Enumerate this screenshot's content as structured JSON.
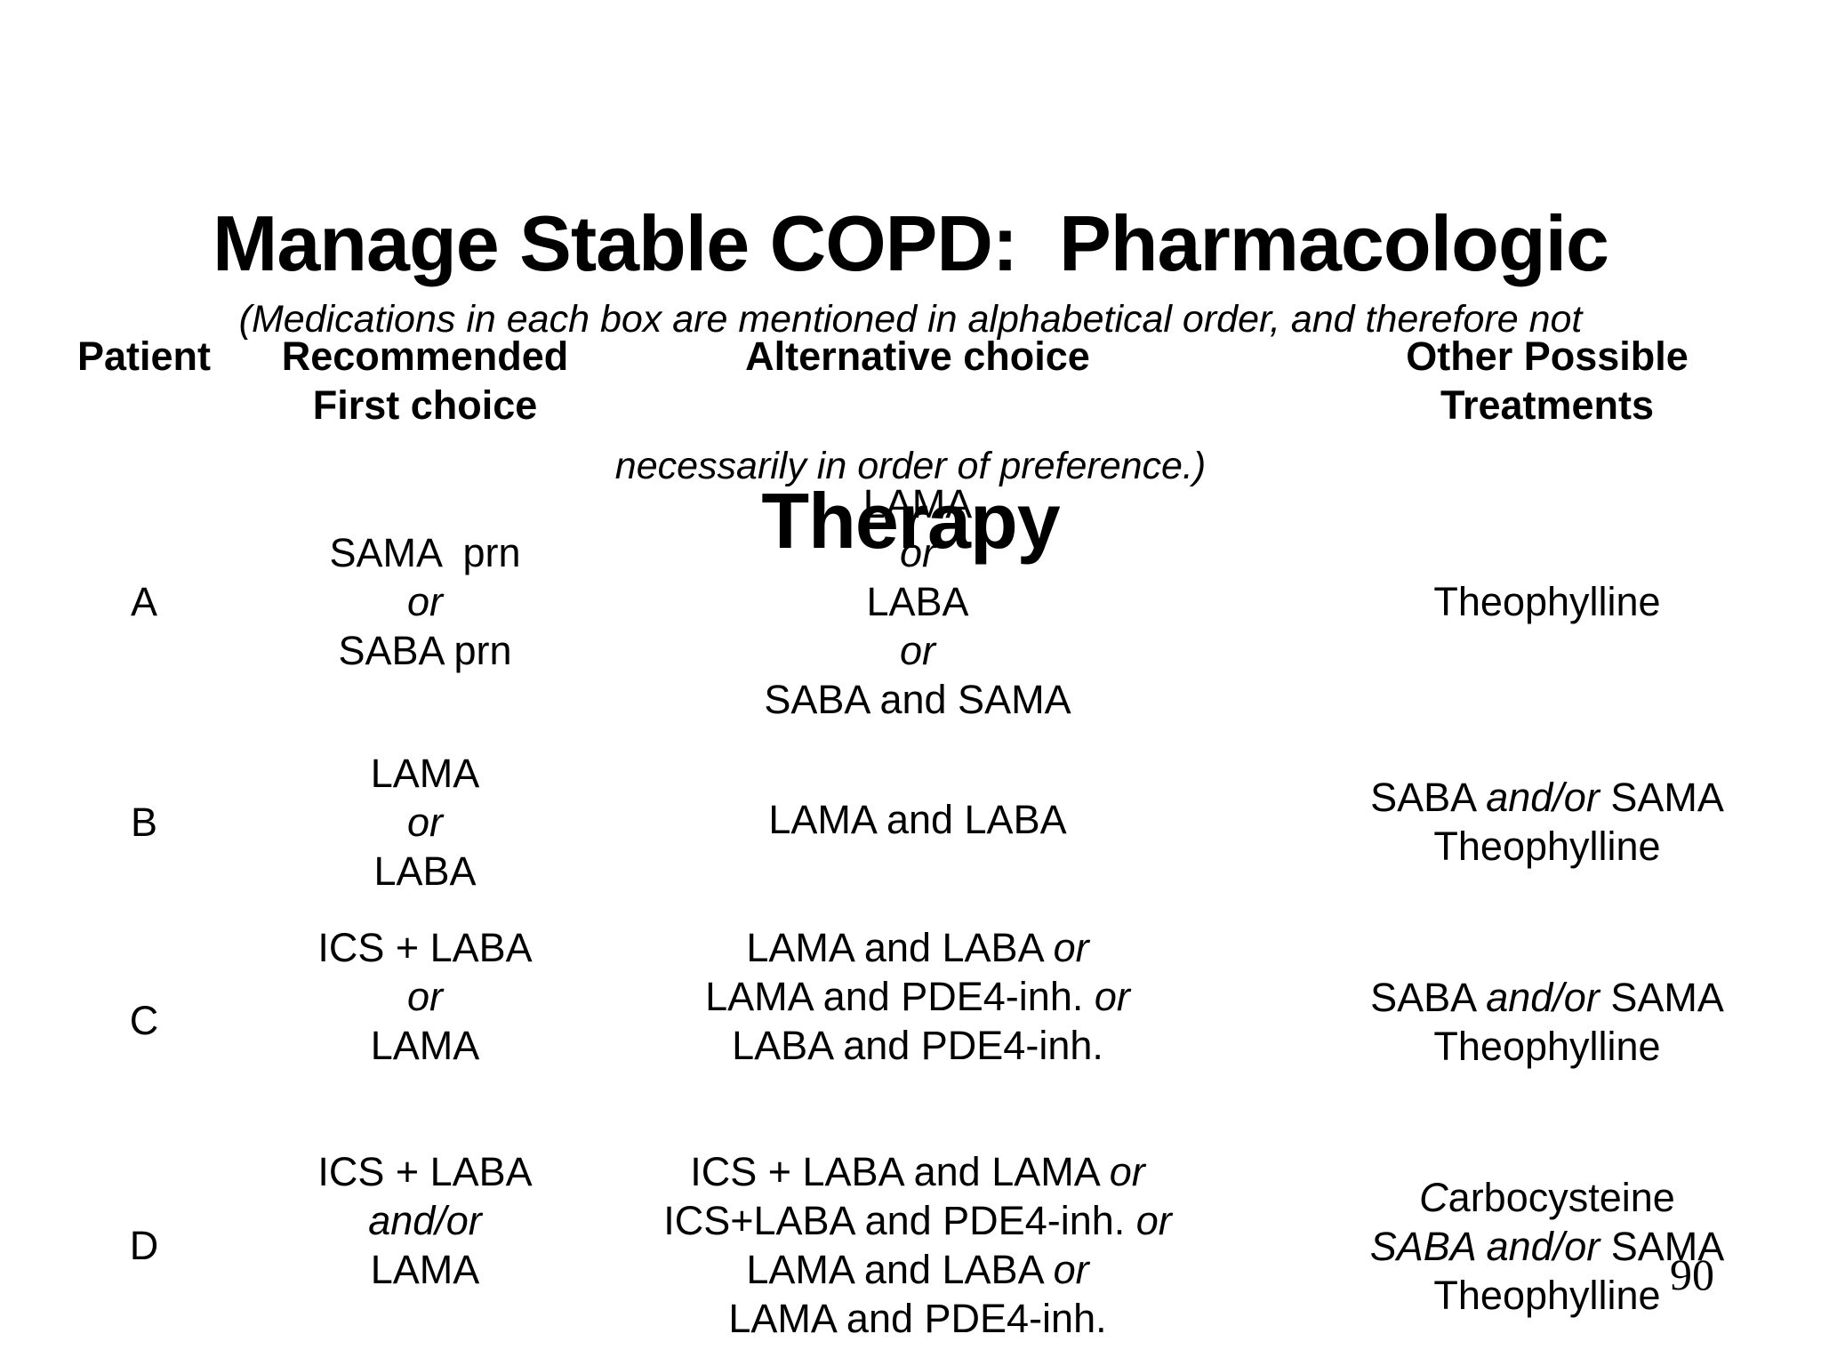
{
  "slide": {
    "title_lines": [
      "Manage Stable COPD:  Pharmacologic",
      "Therapy"
    ],
    "subtitle_lines": [
      "(Medications in each box are mentioned in alphabetical order, and therefore not",
      "necessarily in order of preference.)"
    ],
    "page_number": "90"
  },
  "table": {
    "headers": {
      "patient": [
        "Patient"
      ],
      "first_choice": [
        "Recommended",
        "First choice"
      ],
      "alternative": [
        "Alternative choice"
      ],
      "other": [
        "Other Possible",
        "Treatments"
      ]
    },
    "rows": [
      {
        "patient": "A",
        "first_choice": [
          [
            {
              "t": "SAMA  prn",
              "i": false
            }
          ],
          [
            {
              "t": "or",
              "i": true
            }
          ],
          [
            {
              "t": "SABA prn",
              "i": false
            }
          ]
        ],
        "alternative": [
          [
            {
              "t": "LAMA",
              "i": false
            }
          ],
          [
            {
              "t": "or",
              "i": true
            }
          ],
          [
            {
              "t": "LABA",
              "i": false
            }
          ],
          [
            {
              "t": "or",
              "i": true
            }
          ],
          [
            {
              "t": "SABA and SAMA",
              "i": false
            }
          ]
        ],
        "other": [
          [
            {
              "t": "Theophylline",
              "i": false
            }
          ]
        ]
      },
      {
        "patient": "B",
        "first_choice": [
          [
            {
              "t": "LAMA",
              "i": false
            }
          ],
          [
            {
              "t": "or",
              "i": true
            }
          ],
          [
            {
              "t": "LABA",
              "i": false
            }
          ]
        ],
        "alternative": [
          [
            {
              "t": "LAMA and LABA",
              "i": false
            }
          ]
        ],
        "other": [
          [
            {
              "t": "SABA ",
              "i": false
            },
            {
              "t": "and/or",
              "i": true
            },
            {
              "t": " SAMA",
              "i": false
            }
          ],
          [
            {
              "t": "Theophylline",
              "i": false
            }
          ]
        ]
      },
      {
        "patient": "C",
        "first_choice": [
          [
            {
              "t": "ICS + LABA",
              "i": false
            }
          ],
          [
            {
              "t": "or",
              "i": true
            }
          ],
          [
            {
              "t": "LAMA",
              "i": false
            }
          ]
        ],
        "alternative": [
          [
            {
              "t": "LAMA and LABA ",
              "i": false
            },
            {
              "t": "or",
              "i": true
            }
          ],
          [
            {
              "t": "LAMA and PDE4-inh. ",
              "i": false
            },
            {
              "t": "or",
              "i": true
            }
          ],
          [
            {
              "t": "LABA and PDE4-inh.",
              "i": false
            }
          ]
        ],
        "other": [
          [
            {
              "t": "SABA ",
              "i": false
            },
            {
              "t": "and/or",
              "i": true
            },
            {
              "t": " SAMA",
              "i": false
            }
          ],
          [
            {
              "t": "Theophylline",
              "i": false
            }
          ]
        ]
      },
      {
        "patient": "D",
        "first_choice": [
          [
            {
              "t": "ICS + LABA",
              "i": false
            }
          ],
          [
            {
              "t": "and/or",
              "i": true
            }
          ],
          [
            {
              "t": "LAMA",
              "i": false
            }
          ]
        ],
        "alternative": [
          [
            {
              "t": "ICS + LABA and LAMA ",
              "i": false
            },
            {
              "t": "or",
              "i": true
            }
          ],
          [
            {
              "t": "ICS+LABA and PDE4-inh. ",
              "i": false
            },
            {
              "t": "or",
              "i": true
            }
          ],
          [
            {
              "t": "LAMA and LABA ",
              "i": false
            },
            {
              "t": "or",
              "i": true
            }
          ],
          [
            {
              "t": "LAMA and PDE4-inh.",
              "i": false
            }
          ]
        ],
        "other": [
          [
            {
              "t": "C",
              "i": true
            },
            {
              "t": "arbocysteine",
              "i": false
            }
          ],
          [
            {
              "t": "SABA and/or",
              "i": true
            },
            {
              "t": " SAMA",
              "i": false
            }
          ],
          [
            {
              "t": "Theophylline",
              "i": false
            }
          ]
        ]
      }
    ]
  }
}
